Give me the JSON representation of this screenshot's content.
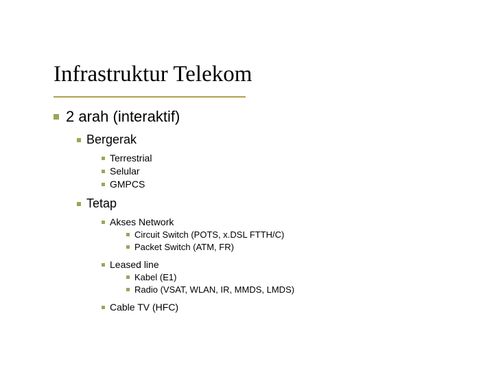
{
  "title": "Infrastruktur Telekom",
  "colors": {
    "bullet": "#9da458",
    "underline": "#b0a050",
    "text": "#000000",
    "background": "#ffffff"
  },
  "outline": {
    "lvl1": "2 arah (interaktif)",
    "bergerak": {
      "label": "Bergerak",
      "items": [
        "Terrestrial",
        "Selular",
        "GMPCS"
      ]
    },
    "tetap": {
      "label": "Tetap",
      "akses": {
        "label": "Akses Network",
        "items": [
          "Circuit Switch (POTS, x.DSL FTTH/C)",
          "Packet Switch (ATM, FR)"
        ]
      },
      "leased": {
        "label": "Leased line",
        "items": [
          "Kabel (E1)",
          "Radio (VSAT, WLAN, IR, MMDS, LMDS)"
        ]
      },
      "cable": "Cable TV (HFC)"
    }
  }
}
